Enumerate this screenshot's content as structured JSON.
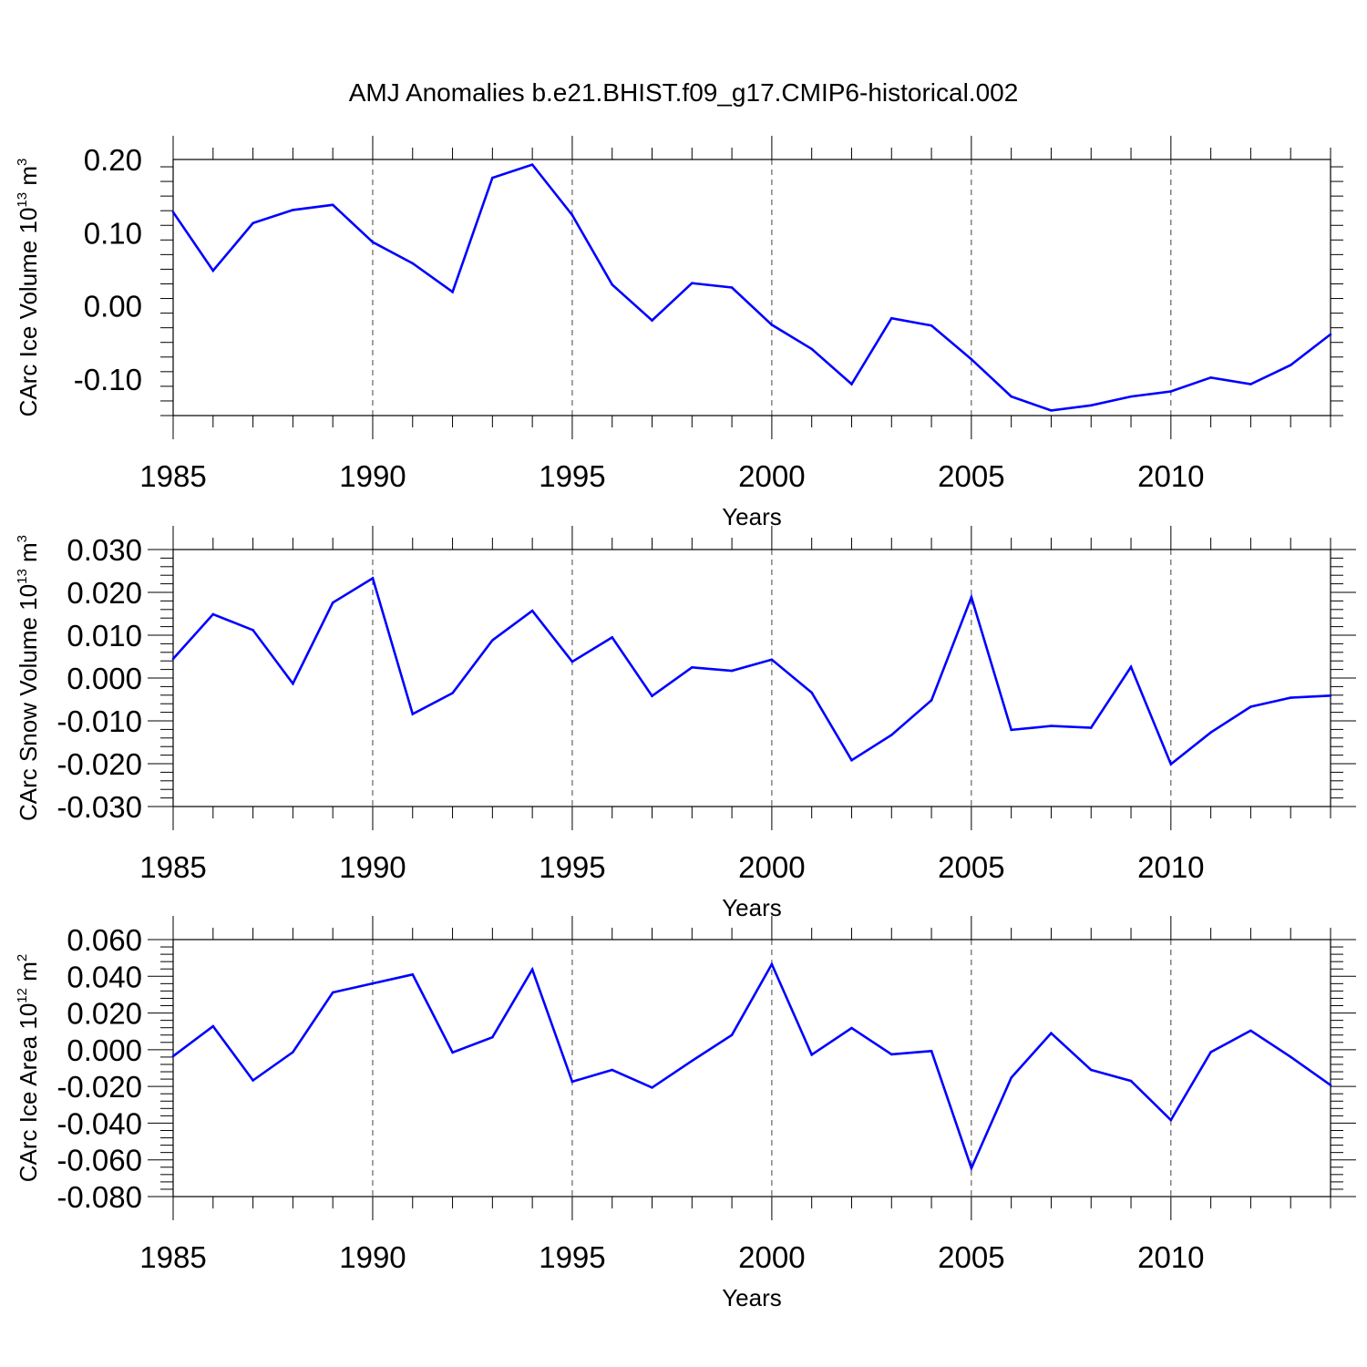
{
  "title": "AMJ Anomalies b.e21.BHIST.f09_g17.CMIP6-historical.002",
  "colors": {
    "line": "#0000ff",
    "axis": "#000000",
    "grid": "#444444"
  },
  "chart_data": [
    {
      "type": "line",
      "ylabel": "CArc Ice Volume 10",
      "ylabel_exp": "13",
      "ylabel_unit": " m",
      "ylabel_unit_exp": "3",
      "xlabel": "Years",
      "xlim": [
        1985,
        2014
      ],
      "ylim": [
        -0.15,
        0.2
      ],
      "yticks": [
        0.2,
        0.1,
        0.0,
        -0.1
      ],
      "ytick_labels": [
        "0.20",
        "0.10",
        "0.00",
        "-0.10"
      ],
      "xticks": [
        1985,
        1990,
        1995,
        2000,
        2005,
        2010
      ],
      "xtick_labels": [
        "1985",
        "1990",
        "1995",
        "2000",
        "2005",
        "2010"
      ],
      "vgrid": [
        1990,
        1995,
        2000,
        2005,
        2010
      ],
      "series": [
        {
          "x": [
            1985,
            1986,
            1987,
            1988,
            1989,
            1990,
            1991,
            1992,
            1993,
            1994,
            1995,
            1996,
            1997,
            1998,
            1999,
            2000,
            2001,
            2002,
            2003,
            2004,
            2005,
            2006,
            2007,
            2008,
            2009,
            2010,
            2011,
            2012,
            2013,
            2014
          ],
          "values": [
            0.128,
            0.048,
            0.113,
            0.131,
            0.138,
            0.087,
            0.058,
            0.019,
            0.175,
            0.193,
            0.124,
            0.029,
            -0.02,
            0.031,
            0.025,
            -0.026,
            -0.059,
            -0.107,
            -0.017,
            -0.027,
            -0.073,
            -0.124,
            -0.143,
            -0.136,
            -0.124,
            -0.117,
            -0.098,
            -0.107,
            -0.081,
            -0.039
          ]
        }
      ]
    },
    {
      "type": "line",
      "ylabel": "CArc Snow Volume 10",
      "ylabel_exp": "13",
      "ylabel_unit": " m",
      "ylabel_unit_exp": "3",
      "xlabel": "Years",
      "xlim": [
        1985,
        2014
      ],
      "ylim": [
        -0.03,
        0.03
      ],
      "yticks": [
        0.03,
        0.02,
        0.01,
        0.0,
        -0.01,
        -0.02,
        -0.03
      ],
      "ytick_labels": [
        "0.030",
        "0.020",
        "0.010",
        "0.000",
        "-0.010",
        "-0.020",
        "-0.030"
      ],
      "xticks": [
        1985,
        1990,
        1995,
        2000,
        2005,
        2010
      ],
      "xtick_labels": [
        "1985",
        "1990",
        "1995",
        "2000",
        "2005",
        "2010"
      ],
      "vgrid": [
        1990,
        1995,
        2000,
        2005,
        2010
      ],
      "series": [
        {
          "x": [
            1985,
            1986,
            1987,
            1988,
            1989,
            1990,
            1991,
            1992,
            1993,
            1994,
            1995,
            1996,
            1997,
            1998,
            1999,
            2000,
            2001,
            2002,
            2003,
            2004,
            2005,
            2006,
            2007,
            2008,
            2009,
            2010,
            2011,
            2012,
            2013,
            2014
          ],
          "values": [
            0.0045,
            0.0149,
            0.0112,
            -0.0013,
            0.0176,
            0.0233,
            -0.0084,
            -0.0035,
            0.0088,
            0.0157,
            0.0038,
            0.0095,
            -0.0042,
            0.0025,
            0.0017,
            0.0043,
            -0.0034,
            -0.0192,
            -0.0133,
            -0.0052,
            0.0189,
            -0.0121,
            -0.0112,
            -0.0116,
            0.0026,
            -0.0201,
            -0.0127,
            -0.0067,
            -0.0046,
            -0.0041
          ]
        }
      ]
    },
    {
      "type": "line",
      "ylabel": "CArc Ice Area 10",
      "ylabel_exp": "12",
      "ylabel_unit": " m",
      "ylabel_unit_exp": "2",
      "xlabel": "Years",
      "xlim": [
        1985,
        2014
      ],
      "ylim": [
        -0.08,
        0.06
      ],
      "yticks": [
        0.06,
        0.04,
        0.02,
        0.0,
        -0.02,
        -0.04,
        -0.06,
        -0.08
      ],
      "ytick_labels": [
        "0.060",
        "0.040",
        "0.020",
        "0.000",
        "-0.020",
        "-0.040",
        "-0.060",
        "-0.080"
      ],
      "xticks": [
        1985,
        1990,
        1995,
        2000,
        2005,
        2010
      ],
      "xtick_labels": [
        "1985",
        "1990",
        "1995",
        "2000",
        "2005",
        "2010"
      ],
      "vgrid": [
        1990,
        1995,
        2000,
        2005,
        2010
      ],
      "series": [
        {
          "x": [
            1985,
            1986,
            1987,
            1988,
            1989,
            1990,
            1991,
            1992,
            1993,
            1994,
            1995,
            1996,
            1997,
            1998,
            1999,
            2000,
            2001,
            2002,
            2003,
            2004,
            2005,
            2006,
            2007,
            2008,
            2009,
            2010,
            2011,
            2012,
            2013,
            2014
          ],
          "values": [
            -0.0035,
            0.0128,
            -0.0167,
            -0.0013,
            0.0312,
            0.0361,
            0.041,
            -0.0015,
            0.0068,
            0.0437,
            -0.0174,
            -0.011,
            -0.0206,
            -0.0061,
            0.008,
            0.0466,
            -0.0027,
            0.0118,
            -0.0025,
            -0.0007,
            -0.0645,
            -0.0152,
            0.009,
            -0.011,
            -0.017,
            -0.0383,
            -0.0013,
            0.0104,
            -0.0039,
            -0.0193
          ]
        }
      ]
    }
  ]
}
